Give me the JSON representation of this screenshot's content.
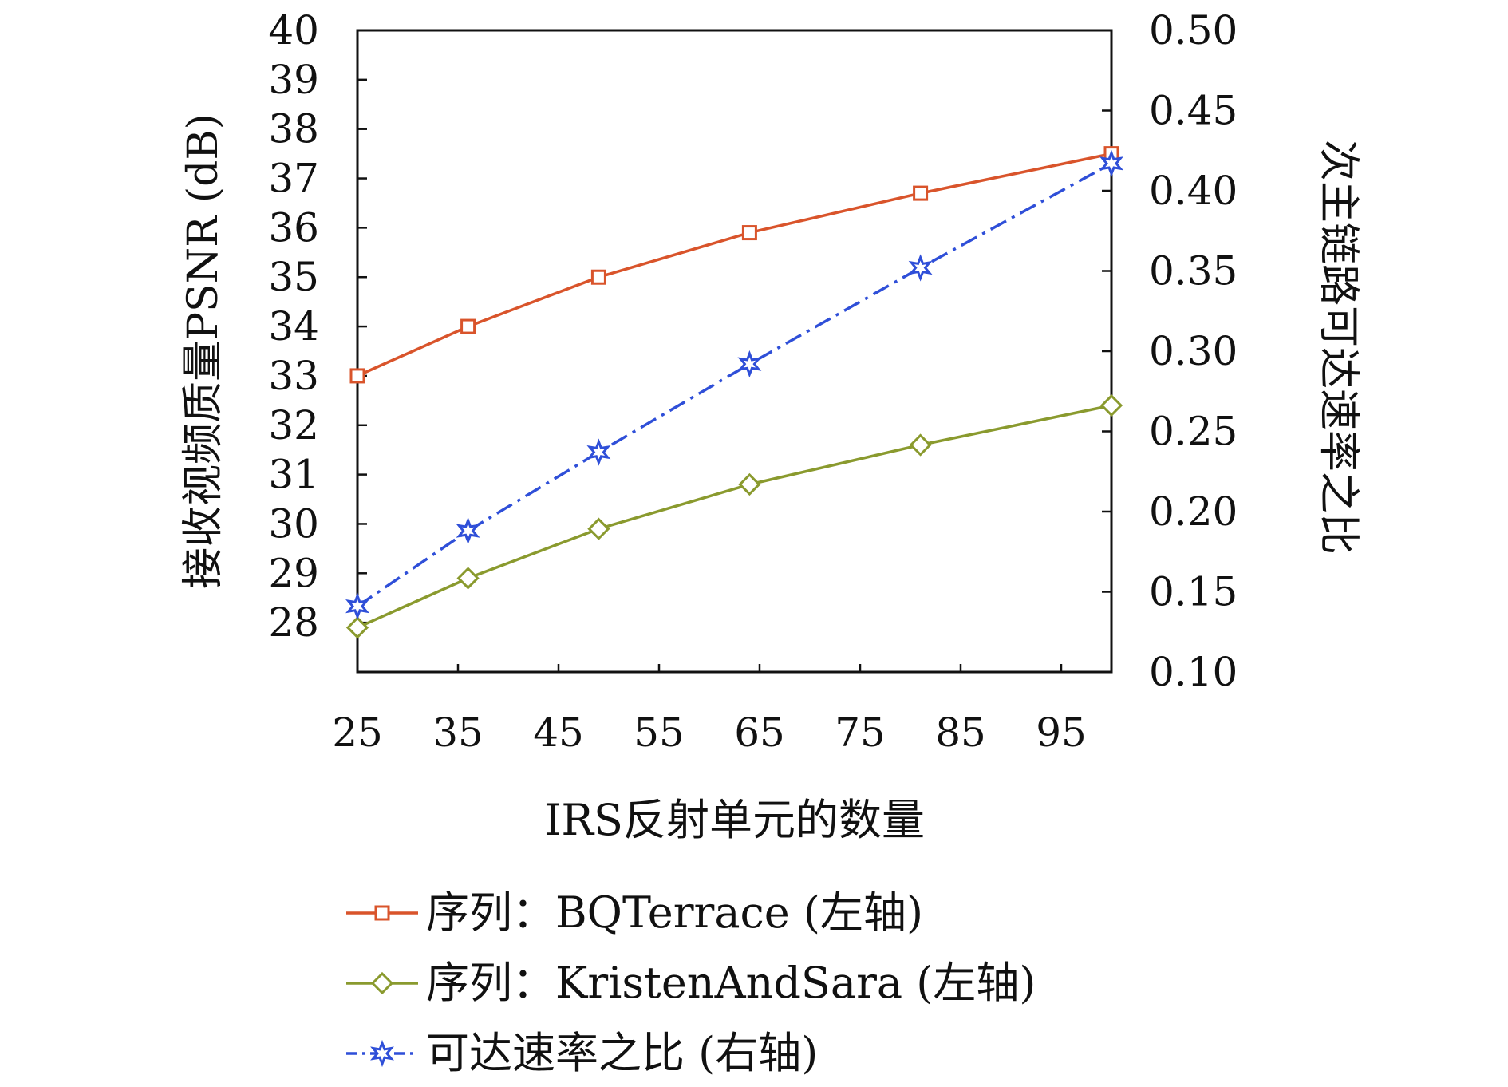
{
  "chart_data": {
    "type": "line",
    "xlabel": "IRS反射单元的数量",
    "ylabel_left": "接收视频质量PSNR (dB)",
    "ylabel_right": "次主链路可达速率之比",
    "x_ticks": [
      25,
      35,
      45,
      55,
      65,
      75,
      85,
      95
    ],
    "x_tick_labels": [
      "25",
      "35",
      "45",
      "55",
      "65",
      "75",
      "85",
      "95"
    ],
    "xlim": [
      25,
      100
    ],
    "ylim_left": [
      27,
      40
    ],
    "ylim_right": [
      0.1,
      0.5
    ],
    "y_ticks_left": [
      "28",
      "29",
      "30",
      "31",
      "32",
      "33",
      "34",
      "35",
      "36",
      "37",
      "38",
      "39",
      "40"
    ],
    "y_ticks_right": [
      "0.10",
      "0.15",
      "0.20",
      "0.25",
      "0.30",
      "0.35",
      "0.40",
      "0.45",
      "0.50"
    ],
    "grid": false,
    "legend_position": "bottom",
    "series": [
      {
        "name": "序列：BQTerrace (左轴)",
        "axis": "left",
        "color": "#d9542b",
        "marker": "square",
        "line": "solid",
        "x": [
          25,
          36,
          49,
          64,
          81,
          100
        ],
        "y": [
          33.0,
          34.0,
          35.0,
          35.9,
          36.7,
          37.5
        ]
      },
      {
        "name": "序列：KristenAndSara (左轴)",
        "axis": "left",
        "color": "#8a9a2e",
        "marker": "diamond",
        "line": "solid",
        "x": [
          25,
          36,
          49,
          64,
          81,
          100
        ],
        "y": [
          27.9,
          28.9,
          29.9,
          30.8,
          31.6,
          32.4
        ]
      },
      {
        "name": "可达速率之比 (右轴)",
        "axis": "right",
        "color": "#2f4fd8",
        "marker": "star",
        "line": "dashdot",
        "x": [
          25,
          36,
          49,
          64,
          81,
          100
        ],
        "y": [
          0.141,
          0.188,
          0.237,
          0.292,
          0.352,
          0.417
        ]
      }
    ]
  }
}
